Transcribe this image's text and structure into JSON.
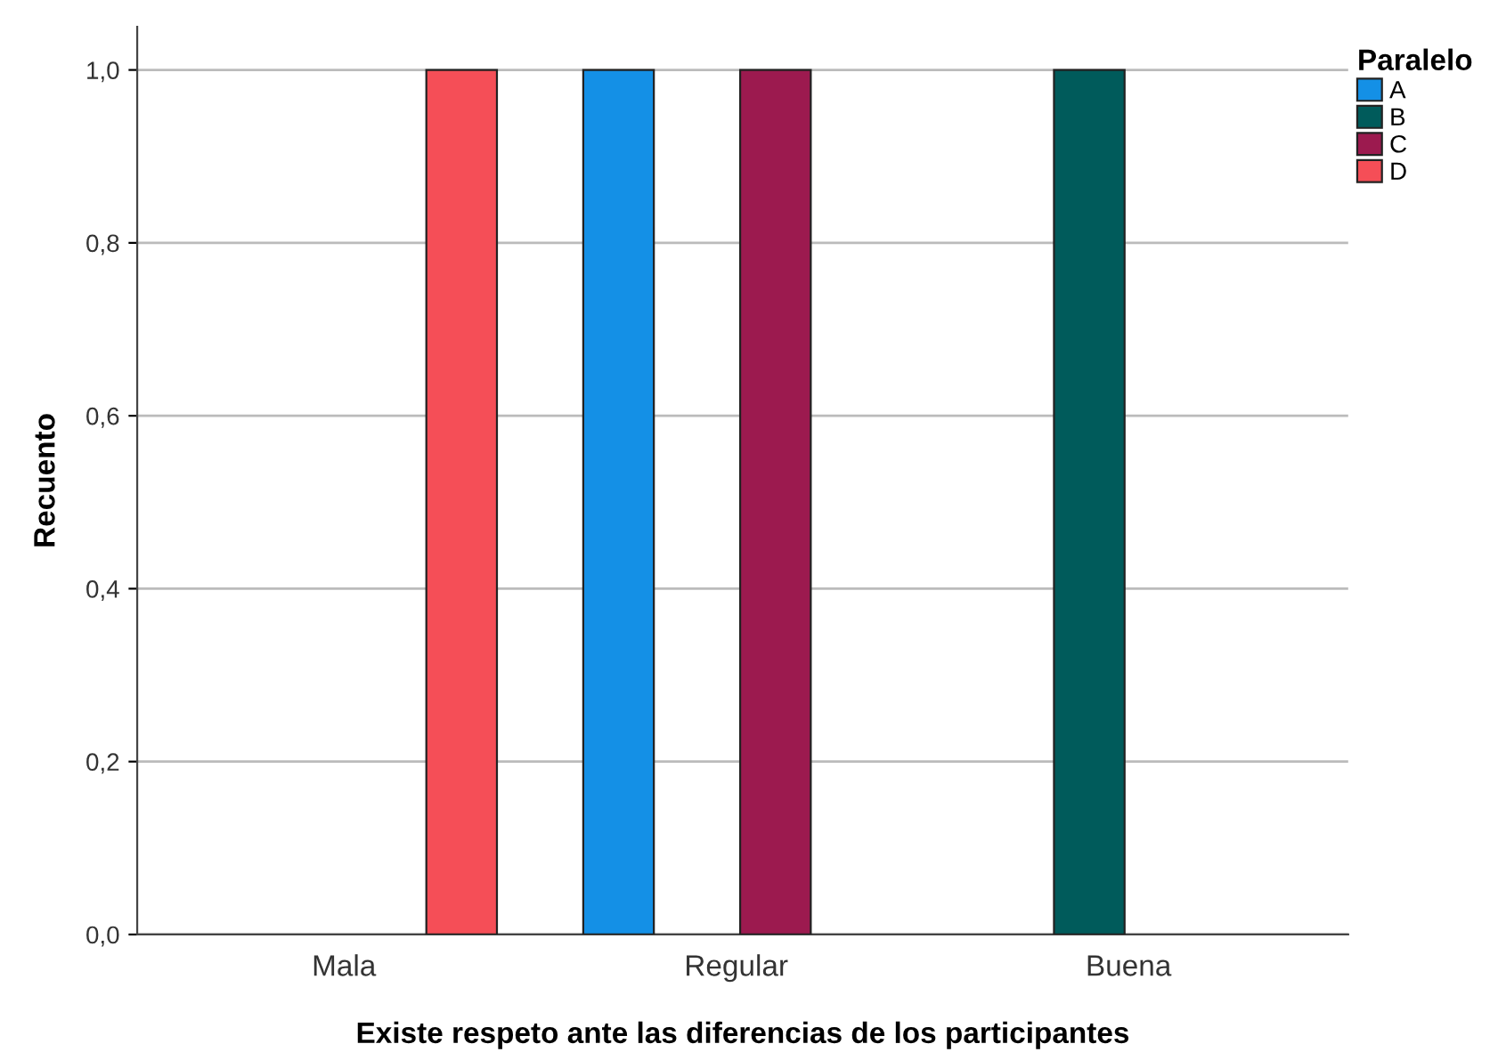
{
  "chart_data": {
    "type": "bar",
    "xlabel": "Existe respeto ante las diferencias de los participantes",
    "ylabel": "Recuento",
    "legend_title": "Paralelo",
    "categories": [
      "Mala",
      "Regular",
      "Buena"
    ],
    "series": [
      {
        "name": "A",
        "color": "#1490e6",
        "values": [
          null,
          1.0,
          null
        ]
      },
      {
        "name": "B",
        "color": "#005b5b",
        "values": [
          null,
          null,
          1.0
        ]
      },
      {
        "name": "C",
        "color": "#9c1a4f",
        "values": [
          null,
          1.0,
          null
        ]
      },
      {
        "name": "D",
        "color": "#f54e57",
        "values": [
          1.0,
          null,
          null
        ]
      }
    ],
    "ylim": [
      0,
      1.05
    ],
    "yticks": [
      {
        "value": 0,
        "label": "0,0"
      },
      {
        "value": 0.2,
        "label": "0,2"
      },
      {
        "value": 0.4,
        "label": "0,4"
      },
      {
        "value": 0.6,
        "label": "0,6"
      },
      {
        "value": 0.8,
        "label": "0,8"
      },
      {
        "value": 1.0,
        "label": "1,0"
      }
    ],
    "grid": "y",
    "legend": "top right"
  }
}
